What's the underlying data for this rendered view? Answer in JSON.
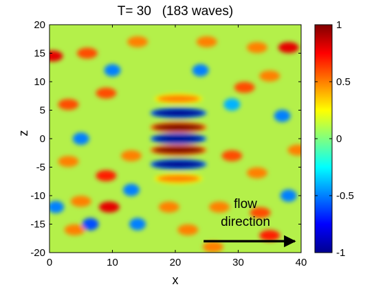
{
  "chart_data": {
    "type": "heatmap",
    "title": "T= 30   (183 waves)",
    "xlabel": "x",
    "ylabel": "z",
    "xlim": [
      0,
      40
    ],
    "ylim": [
      -20,
      20
    ],
    "x_ticks": [
      "0",
      "10",
      "20",
      "30",
      "40"
    ],
    "y_ticks": [
      "20",
      "15",
      "10",
      "5",
      "0",
      "-5",
      "-10",
      "-15",
      "-20"
    ],
    "colorbar": {
      "range": [
        -1,
        1
      ],
      "colormap": "jet",
      "ticks": [
        "1",
        "0.5",
        "0",
        "-0.5",
        "-1"
      ]
    },
    "annotation": {
      "line1": "flow",
      "line2": "direction",
      "arrow_from": [
        24.5,
        -18
      ],
      "arrow_to": [
        39,
        -18
      ]
    },
    "central_wavepacket": {
      "center_x": 20.5,
      "extent_x": [
        16,
        25
      ],
      "extent_z": [
        -8,
        8
      ],
      "bands": [
        {
          "z": 7,
          "value": 0.5
        },
        {
          "z": 4.5,
          "value": -1
        },
        {
          "z": 2,
          "value": 1
        },
        {
          "z": 0,
          "value": -1
        },
        {
          "z": -2,
          "value": 1
        },
        {
          "z": -4.5,
          "value": -1
        },
        {
          "z": -7,
          "value": 0.5
        }
      ]
    },
    "background_features": [
      {
        "x": 0.5,
        "z": 14.5,
        "value": 0.8
      },
      {
        "x": 6,
        "z": 15,
        "value": 0.6
      },
      {
        "x": 14,
        "z": 17,
        "value": 0.5
      },
      {
        "x": 25,
        "z": 17,
        "value": 0.5
      },
      {
        "x": 33,
        "z": 16,
        "value": 0.5
      },
      {
        "x": 38,
        "z": 16,
        "value": 0.8
      },
      {
        "x": 3,
        "z": 6,
        "value": 0.6
      },
      {
        "x": 9,
        "z": 8,
        "value": 0.6
      },
      {
        "x": 31,
        "z": 9,
        "value": 0.6
      },
      {
        "x": 35,
        "z": 11,
        "value": 0.5
      },
      {
        "x": 3,
        "z": -4,
        "value": 0.5
      },
      {
        "x": 9,
        "z": -6.5,
        "value": 0.7
      },
      {
        "x": 13,
        "z": -3,
        "value": 0.5
      },
      {
        "x": 29,
        "z": -3,
        "value": 0.6
      },
      {
        "x": 33,
        "z": -6,
        "value": 0.5
      },
      {
        "x": 39.5,
        "z": -2,
        "value": 0.5
      },
      {
        "x": 5,
        "z": -11,
        "value": 0.5
      },
      {
        "x": 9.5,
        "z": -12,
        "value": 0.8
      },
      {
        "x": 19,
        "z": -12,
        "value": 0.5
      },
      {
        "x": 27,
        "z": -12,
        "value": 0.5
      },
      {
        "x": 33.5,
        "z": -13,
        "value": 0.6
      },
      {
        "x": 4,
        "z": -16,
        "value": 0.5
      },
      {
        "x": 22,
        "z": -16,
        "value": 0.5
      },
      {
        "x": 26,
        "z": -19,
        "value": 0.5
      },
      {
        "x": 35,
        "z": -17,
        "value": 0.7
      },
      {
        "x": 10,
        "z": 12,
        "value": -0.5
      },
      {
        "x": 24,
        "z": 12,
        "value": -0.5
      },
      {
        "x": 37,
        "z": 4,
        "value": -0.5
      },
      {
        "x": 5,
        "z": 0,
        "value": -0.5
      },
      {
        "x": 13,
        "z": -9,
        "value": -0.5
      },
      {
        "x": 6.5,
        "z": -15,
        "value": -0.6
      },
      {
        "x": 14,
        "z": -15,
        "value": -0.5
      },
      {
        "x": 1,
        "z": -12,
        "value": -0.5
      },
      {
        "x": 38,
        "z": -10,
        "value": -0.5
      },
      {
        "x": 29,
        "z": 6,
        "value": -0.4
      }
    ]
  }
}
